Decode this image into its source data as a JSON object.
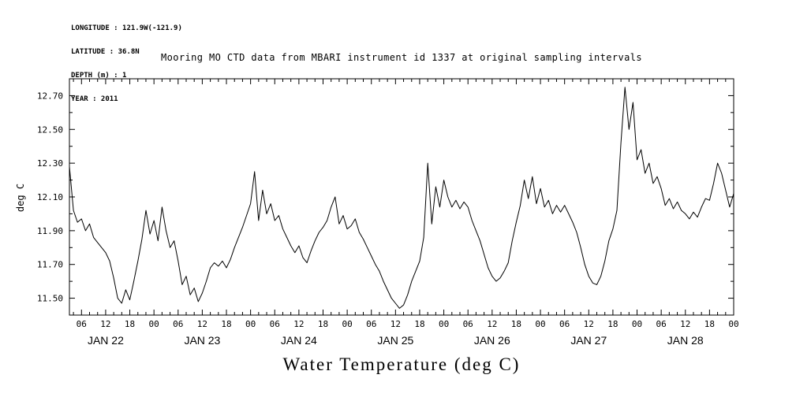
{
  "meta": {
    "longitude": "LONGITUDE : 121.9W(-121.9)",
    "latitude": "LATITUDE : 36.8N",
    "depth": "DEPTH (m) : 1",
    "year": "YEAR : 2011"
  },
  "header": {
    "title": "Mooring MO CTD data from MBARI instrument id 1337 at original sampling intervals"
  },
  "footer": {
    "caption": "Water Temperature (deg C)"
  },
  "chart_data": {
    "type": "line",
    "title": "Mooring MO CTD data from MBARI instrument id 1337 at original sampling intervals",
    "xlabel": "Water Temperature (deg C)",
    "ylabel": "deg C",
    "line_color": "#000000",
    "grid": false,
    "legend": "none",
    "ylim": [
      11.4,
      12.8
    ],
    "yticks": [
      11.5,
      11.7,
      11.9,
      12.1,
      12.3,
      12.5,
      12.7
    ],
    "ytick_minor_step": 0.1,
    "x_hours_range": [
      3,
      168
    ],
    "xtick_major_step_hours": 6,
    "xtick_minor_step_hours": 2,
    "hour_tick_labels_cycle": [
      "00",
      "06",
      "12",
      "18"
    ],
    "day_labels": [
      "JAN 22",
      "JAN 23",
      "JAN 24",
      "JAN 25",
      "JAN 26",
      "JAN 27",
      "JAN 28"
    ],
    "series": [
      {
        "name": "Water Temperature (deg C)",
        "x_start_hour": 3,
        "x_step_hours": 1,
        "values": [
          12.28,
          12.02,
          11.95,
          11.97,
          11.9,
          11.94,
          11.86,
          11.83,
          11.8,
          11.77,
          11.72,
          11.62,
          11.5,
          11.47,
          11.55,
          11.49,
          11.6,
          11.72,
          11.85,
          12.02,
          11.88,
          11.96,
          11.84,
          12.04,
          11.9,
          11.8,
          11.84,
          11.72,
          11.58,
          11.63,
          11.52,
          11.56,
          11.48,
          11.53,
          11.6,
          11.68,
          11.71,
          11.69,
          11.72,
          11.68,
          11.73,
          11.8,
          11.86,
          11.92,
          11.99,
          12.06,
          12.25,
          11.96,
          12.14,
          12.0,
          12.06,
          11.96,
          11.99,
          11.91,
          11.86,
          11.81,
          11.77,
          11.81,
          11.74,
          11.71,
          11.78,
          11.84,
          11.89,
          11.92,
          11.96,
          12.04,
          12.1,
          11.94,
          11.99,
          11.91,
          11.93,
          11.97,
          11.89,
          11.85,
          11.8,
          11.75,
          11.7,
          11.66,
          11.6,
          11.55,
          11.5,
          11.47,
          11.44,
          11.46,
          11.52,
          11.6,
          11.66,
          11.72,
          11.86,
          12.3,
          11.94,
          12.16,
          12.04,
          12.2,
          12.1,
          12.04,
          12.08,
          12.03,
          12.07,
          12.04,
          11.96,
          11.9,
          11.84,
          11.76,
          11.68,
          11.63,
          11.6,
          11.62,
          11.66,
          11.71,
          11.84,
          11.95,
          12.05,
          12.2,
          12.09,
          12.22,
          12.06,
          12.15,
          12.04,
          12.08,
          12.0,
          12.05,
          12.01,
          12.05,
          12.0,
          11.95,
          11.89,
          11.8,
          11.7,
          11.63,
          11.59,
          11.58,
          11.63,
          11.72,
          11.84,
          11.91,
          12.02,
          12.42,
          12.75,
          12.5,
          12.66,
          12.32,
          12.38,
          12.24,
          12.3,
          12.18,
          12.22,
          12.15,
          12.05,
          12.09,
          12.03,
          12.07,
          12.02,
          12.0,
          11.97,
          12.01,
          11.98,
          12.04,
          12.09,
          12.08,
          12.18,
          12.3,
          12.24,
          12.14,
          12.04,
          12.12
        ]
      }
    ]
  }
}
